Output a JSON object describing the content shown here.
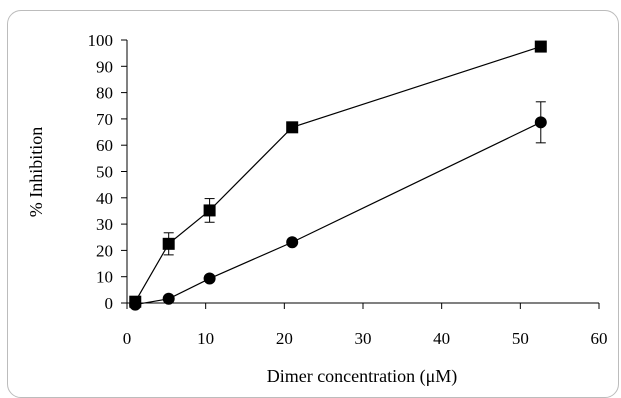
{
  "chart_data": {
    "type": "line",
    "title": "",
    "xlabel": "Dimer concentration (μM)",
    "ylabel": "% Inhibition",
    "xlim": [
      0,
      60
    ],
    "ylim": [
      0,
      100
    ],
    "xticks": [
      0,
      10,
      20,
      30,
      40,
      50,
      60
    ],
    "yticks": [
      0,
      10,
      20,
      30,
      40,
      50,
      60,
      70,
      80,
      90,
      100
    ],
    "grid": false,
    "legend": "none",
    "series": [
      {
        "marker": "square",
        "color": "#000000",
        "x": [
          1.05,
          5.3,
          10.5,
          21,
          52.6
        ],
        "y": [
          0.5,
          22.5,
          35.2,
          66.8,
          97.5
        ],
        "err": [
          0,
          4.2,
          4.5,
          0,
          0
        ]
      },
      {
        "marker": "circle",
        "color": "#000000",
        "x": [
          1.05,
          5.3,
          10.5,
          21,
          52.6
        ],
        "y": [
          -0.6,
          1.6,
          9.3,
          23.1,
          68.7
        ],
        "err": [
          0,
          0,
          0,
          0,
          7.8
        ]
      }
    ]
  }
}
